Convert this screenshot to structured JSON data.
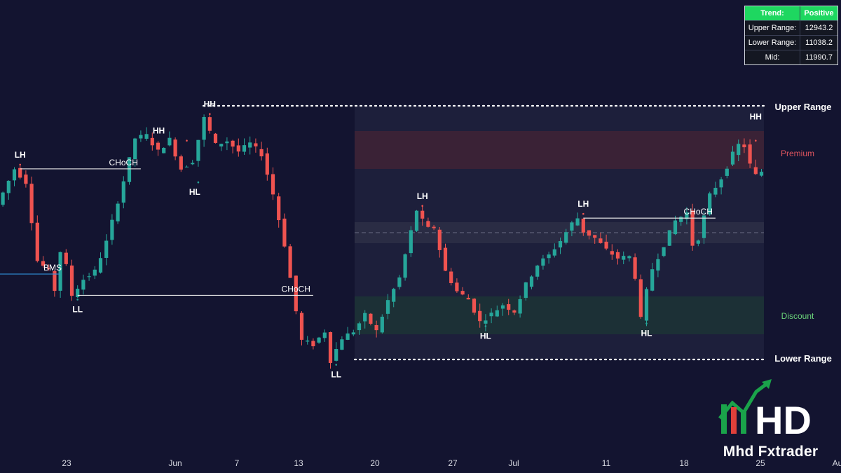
{
  "colors": {
    "background": "#131430",
    "bull": "#26a69a",
    "bear": "#ef5350",
    "premium_zone": "#3a2236",
    "discount_zone": "#1c3036",
    "equilibrium_zone": "#2a2c44",
    "range_box": "#1d1f3b",
    "structure_line": "#e8e8e8",
    "bms_line": "#2f8fd8",
    "premium_text": "#e0555f",
    "discount_text": "#6ad37a",
    "table_head": "#1ed760",
    "logo_green": "#1aa34a",
    "logo_red": "#e0403a"
  },
  "info_table": {
    "header": {
      "key": "Trend:",
      "value": "Positive"
    },
    "rows": [
      {
        "key": "Upper Range:",
        "value": "12943.2"
      },
      {
        "key": "Lower Range:",
        "value": "11038.2"
      },
      {
        "key": "Mid:",
        "value": "11990.7"
      }
    ]
  },
  "brand": {
    "name": "Mhd Fxtrader",
    "logo_text": "HD"
  },
  "chart_data": {
    "type": "candlestick",
    "x_axis": {
      "ticks": [
        "23",
        "Jun",
        "7",
        "13",
        "20",
        "27",
        "Jul",
        "11",
        "18",
        "25",
        "Au"
      ]
    },
    "range": {
      "upper": 12943.2,
      "lower": 11038.2,
      "mid": 11990.7,
      "upper_label": "Upper Range",
      "lower_label": "Lower Range",
      "premium_label": "Premium",
      "discount_label": "Discount"
    },
    "price_path": [
      {
        "x": 0,
        "p": 12200
      },
      {
        "x": 2,
        "p": 12380
      },
      {
        "x": 3,
        "p": 12470
      },
      {
        "x": 5,
        "p": 12370
      },
      {
        "x": 6,
        "p": 12080
      },
      {
        "x": 7,
        "p": 11780
      },
      {
        "x": 9,
        "p": 11700
      },
      {
        "x": 10,
        "p": 11560
      },
      {
        "x": 11,
        "p": 11850
      },
      {
        "x": 12,
        "p": 11740
      },
      {
        "x": 13,
        "p": 11520
      },
      {
        "x": 15,
        "p": 11640
      },
      {
        "x": 17,
        "p": 11700
      },
      {
        "x": 19,
        "p": 11920
      },
      {
        "x": 22,
        "p": 12380
      },
      {
        "x": 24,
        "p": 12700
      },
      {
        "x": 26,
        "p": 12720
      },
      {
        "x": 28,
        "p": 12600
      },
      {
        "x": 30,
        "p": 12690
      },
      {
        "x": 32,
        "p": 12470
      },
      {
        "x": 34,
        "p": 12530
      },
      {
        "x": 36,
        "p": 12850
      },
      {
        "x": 38,
        "p": 12650
      },
      {
        "x": 40,
        "p": 12680
      },
      {
        "x": 42,
        "p": 12600
      },
      {
        "x": 44,
        "p": 12660
      },
      {
        "x": 46,
        "p": 12580
      },
      {
        "x": 48,
        "p": 12280
      },
      {
        "x": 50,
        "p": 11900
      },
      {
        "x": 52,
        "p": 11400
      },
      {
        "x": 53,
        "p": 11180
      },
      {
        "x": 55,
        "p": 11150
      },
      {
        "x": 57,
        "p": 11250
      },
      {
        "x": 58,
        "p": 11030
      },
      {
        "x": 60,
        "p": 11200
      },
      {
        "x": 62,
        "p": 11250
      },
      {
        "x": 64,
        "p": 11370
      },
      {
        "x": 66,
        "p": 11250
      },
      {
        "x": 68,
        "p": 11480
      },
      {
        "x": 70,
        "p": 11650
      },
      {
        "x": 72,
        "p": 12000
      },
      {
        "x": 73,
        "p": 12160
      },
      {
        "x": 74,
        "p": 12080
      },
      {
        "x": 75,
        "p": 12020
      },
      {
        "x": 76,
        "p": 12030
      },
      {
        "x": 78,
        "p": 11700
      },
      {
        "x": 80,
        "p": 11550
      },
      {
        "x": 82,
        "p": 11490
      },
      {
        "x": 84,
        "p": 11320
      },
      {
        "x": 86,
        "p": 11380
      },
      {
        "x": 88,
        "p": 11450
      },
      {
        "x": 90,
        "p": 11400
      },
      {
        "x": 92,
        "p": 11600
      },
      {
        "x": 94,
        "p": 11750
      },
      {
        "x": 96,
        "p": 11820
      },
      {
        "x": 98,
        "p": 11930
      },
      {
        "x": 100,
        "p": 12060
      },
      {
        "x": 101,
        "p": 12100
      },
      {
        "x": 102,
        "p": 12000
      },
      {
        "x": 104,
        "p": 11950
      },
      {
        "x": 106,
        "p": 11860
      },
      {
        "x": 108,
        "p": 11800
      },
      {
        "x": 110,
        "p": 11810
      },
      {
        "x": 111,
        "p": 11660
      },
      {
        "x": 112,
        "p": 11340
      },
      {
        "x": 113,
        "p": 11550
      },
      {
        "x": 114,
        "p": 11720
      },
      {
        "x": 116,
        "p": 11900
      },
      {
        "x": 118,
        "p": 12080
      },
      {
        "x": 120,
        "p": 12140
      },
      {
        "x": 121,
        "p": 11900
      },
      {
        "x": 122,
        "p": 11950
      },
      {
        "x": 124,
        "p": 12270
      },
      {
        "x": 126,
        "p": 12400
      },
      {
        "x": 128,
        "p": 12580
      },
      {
        "x": 129,
        "p": 12650
      },
      {
        "x": 130,
        "p": 12640
      },
      {
        "x": 131,
        "p": 12500
      },
      {
        "x": 132,
        "p": 12420
      },
      {
        "x": 133,
        "p": 12450
      }
    ],
    "swing_labels": [
      {
        "text": "LH",
        "x": 3,
        "p": 12470,
        "pos": "above"
      },
      {
        "text": "LL",
        "x": 13,
        "p": 11520,
        "pos": "below"
      },
      {
        "text": "HH",
        "x": 32,
        "p": 12650,
        "pos": "above",
        "nudge_x": -40
      },
      {
        "text": "HH",
        "x": 36,
        "p": 12850,
        "pos": "above"
      },
      {
        "text": "HL",
        "x": 34,
        "p": 12400,
        "pos": "below",
        "nudge_x": -5
      },
      {
        "text": "LL",
        "x": 58,
        "p": 11030,
        "pos": "below"
      },
      {
        "text": "LH",
        "x": 73,
        "p": 12160,
        "pos": "above"
      },
      {
        "text": "HL",
        "x": 84,
        "p": 11320,
        "pos": "below"
      },
      {
        "text": "LH",
        "x": 101,
        "p": 12100,
        "pos": "above"
      },
      {
        "text": "HL",
        "x": 112,
        "p": 11340,
        "pos": "below"
      },
      {
        "text": "HH",
        "x": 131,
        "p": 12650,
        "pos": "above",
        "nudge_y": -20
      }
    ],
    "structure_lines": [
      {
        "label": "CHoCH",
        "from_x": 3,
        "to_x": 24,
        "p": 12470
      },
      {
        "label": "CHoCH",
        "from_x": 13,
        "to_x": 54,
        "p": 11520
      },
      {
        "label": "CHoCH",
        "from_x": 101,
        "to_x": 124,
        "p": 12100
      },
      {
        "label": "BMS",
        "from_x": 0,
        "to_x": 10,
        "p": 11680
      }
    ]
  }
}
